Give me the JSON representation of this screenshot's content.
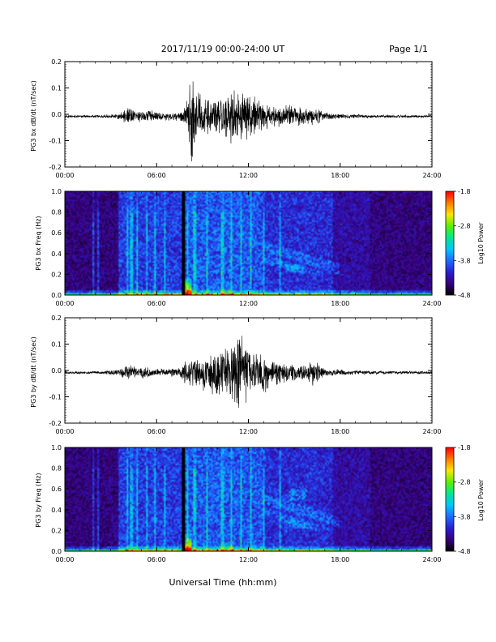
{
  "header": {
    "title": "2017/11/19  00:00-24:00 UT",
    "page": "Page 1/1"
  },
  "footer": {
    "xlabel": "Universal Time (hh:mm)"
  },
  "colors": {
    "spectrogram_scale": [
      "#000000",
      "#3a007a",
      "#2a1fd0",
      "#1f6cff",
      "#00c8ff",
      "#00e890",
      "#5cf000",
      "#ffe600",
      "#ff7a00",
      "#ff0000"
    ]
  },
  "chart_data": [
    {
      "type": "line",
      "ylabel": "PG3 bx dB/dt (nT/sec)",
      "xlim": [
        0,
        24
      ],
      "ylim": [
        -0.2,
        0.2
      ],
      "x_ticks": [
        "00:00",
        "06:00",
        "12:00",
        "18:00",
        "24:00"
      ],
      "y_ticks": [
        "0.2",
        "0.1",
        "0.0",
        "-0.1",
        "-0.2"
      ],
      "envelope": {
        "x_hours": [
          0,
          2,
          3.5,
          4.2,
          4.6,
          5.3,
          6.5,
          7.5,
          8.0,
          8.3,
          8.7,
          9.5,
          10.2,
          10.7,
          11.3,
          11.8,
          12.3,
          13.0,
          14.0,
          15.0,
          15.7,
          16.2,
          17,
          18,
          20,
          22,
          24
        ],
        "amplitude": [
          0.005,
          0.005,
          0.01,
          0.04,
          0.02,
          0.03,
          0.015,
          0.02,
          0.06,
          0.2,
          0.09,
          0.08,
          0.1,
          0.1,
          0.11,
          0.09,
          0.08,
          0.05,
          0.04,
          0.045,
          0.03,
          0.05,
          0.015,
          0.01,
          0.006,
          0.005,
          0.005
        ]
      }
    },
    {
      "type": "heatmap",
      "ylabel": "PG3 bx Freq (Hz)",
      "colorbar_label": "Log10 Power",
      "colorbar_ticks": [
        "-1.8",
        "-2.8",
        "-3.8",
        "-4.8"
      ],
      "clim": [
        -4.8,
        -1.8
      ],
      "xlim": [
        0,
        24
      ],
      "ylim": [
        0.0,
        1.0
      ],
      "x_ticks": [
        "00:00",
        "06:00",
        "12:00",
        "18:00",
        "24:00"
      ],
      "y_ticks": [
        "1.0",
        "0.8",
        "0.6",
        "0.4",
        "0.2",
        "0.0"
      ],
      "data_gap_hour": 7.75
    },
    {
      "type": "line",
      "ylabel": "PG3 by dB/dt (nT/sec)",
      "xlim": [
        0,
        24
      ],
      "ylim": [
        -0.2,
        0.2
      ],
      "x_ticks": [
        "00:00",
        "06:00",
        "12:00",
        "18:00",
        "24:00"
      ],
      "y_ticks": [
        "0.2",
        "0.1",
        "0.0",
        "-0.1",
        "-0.2"
      ],
      "envelope": {
        "x_hours": [
          0,
          2,
          3.5,
          4.2,
          4.6,
          5.3,
          6.5,
          7.5,
          8.0,
          8.5,
          9.2,
          10.0,
          10.5,
          11.0,
          11.5,
          12.0,
          12.5,
          13.0,
          14.0,
          15.0,
          15.7,
          16.2,
          17,
          18,
          20,
          22,
          24
        ],
        "amplitude": [
          0.006,
          0.006,
          0.012,
          0.035,
          0.02,
          0.025,
          0.015,
          0.02,
          0.05,
          0.07,
          0.08,
          0.1,
          0.09,
          0.13,
          0.17,
          0.09,
          0.07,
          0.08,
          0.04,
          0.04,
          0.03,
          0.05,
          0.015,
          0.012,
          0.007,
          0.006,
          0.006
        ]
      }
    },
    {
      "type": "heatmap",
      "ylabel": "PG3 by Freq (Hz)",
      "colorbar_label": "Log10 Power",
      "colorbar_ticks": [
        "-1.8",
        "-2.8",
        "-3.8",
        "-4.8"
      ],
      "clim": [
        -4.8,
        -1.8
      ],
      "xlim": [
        0,
        24
      ],
      "ylim": [
        0.0,
        1.0
      ],
      "x_ticks": [
        "00:00",
        "06:00",
        "12:00",
        "18:00",
        "24:00"
      ],
      "y_ticks": [
        "1.0",
        "0.8",
        "0.6",
        "0.4",
        "0.2",
        "0.0"
      ],
      "data_gap_hour": 7.75
    }
  ]
}
